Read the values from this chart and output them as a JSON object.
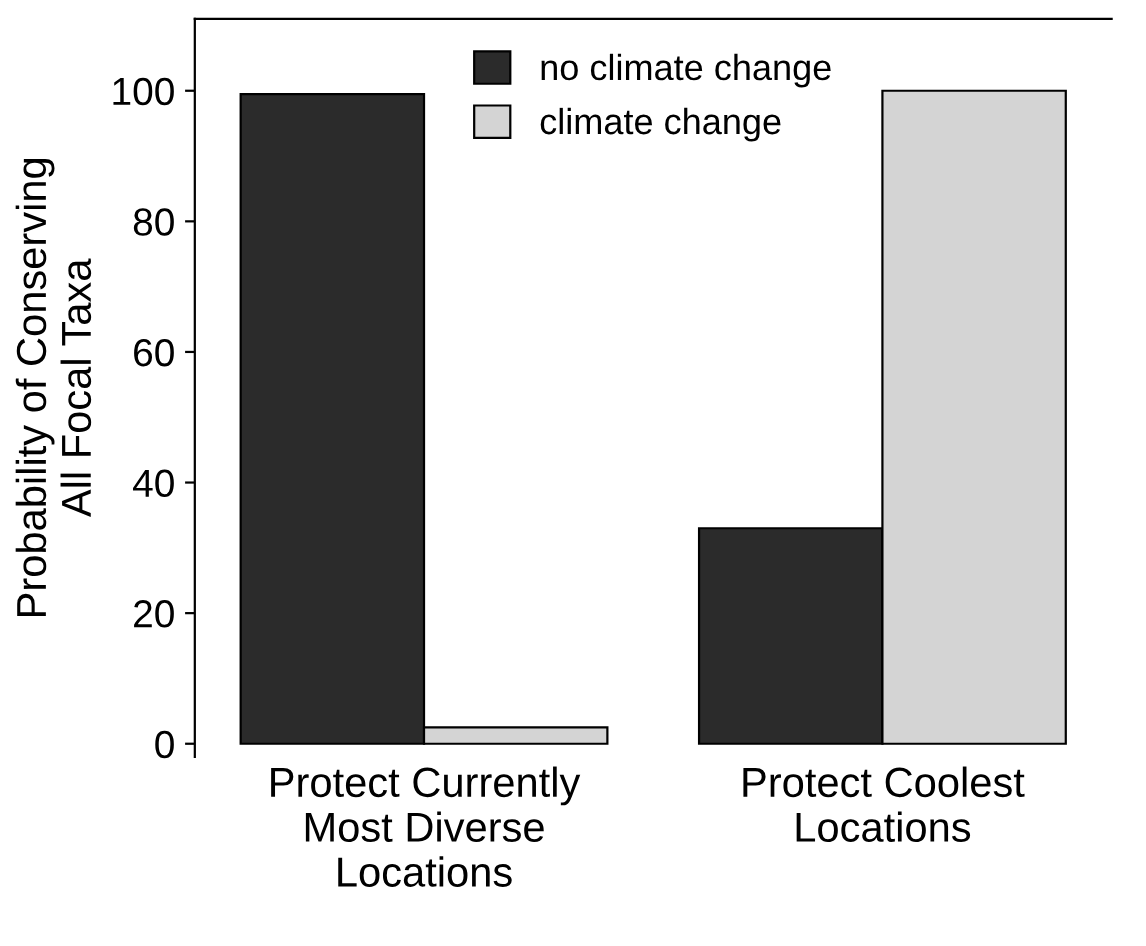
{
  "chart_data": {
    "type": "bar",
    "ylabel": "Probability of Conserving\nAll Focal Taxa",
    "categories": [
      "Protect Currently\nMost Diverse\nLocations",
      "Protect Coolest\nLocations"
    ],
    "series": [
      {
        "name": "no climate change",
        "color": "#2b2b2b",
        "values": [
          99.5,
          33
        ]
      },
      {
        "name": "climate change",
        "color": "#d4d4d4",
        "values": [
          2.5,
          100
        ]
      }
    ],
    "ylim": [
      -2,
      111
    ],
    "yticks": [
      0,
      20,
      40,
      60,
      80,
      100
    ],
    "grid": false,
    "legend": "top"
  }
}
